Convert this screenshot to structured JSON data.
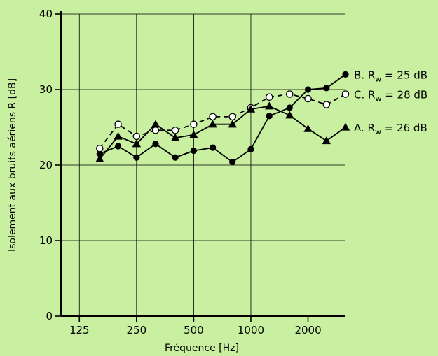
{
  "chart_data": {
    "type": "line",
    "title": "",
    "xlabel": "Fréquence [Hz]",
    "ylabel": "Isolement aux bruits aériens R [dB]",
    "x_scale": "log2",
    "x": [
      160,
      200,
      250,
      315,
      400,
      500,
      630,
      800,
      1000,
      1250,
      1600,
      2000,
      2500,
      3150
    ],
    "x_ticks": [
      125,
      250,
      500,
      1000,
      2000
    ],
    "x_tick_labels": [
      "125",
      "250",
      "500",
      "1000",
      "2000"
    ],
    "xlim": [
      100,
      3150
    ],
    "ylim": [
      0,
      40
    ],
    "y_ticks": [
      0,
      10,
      20,
      30,
      40
    ],
    "y_tick_labels": [
      "0",
      "10",
      "20",
      "30",
      "40"
    ],
    "grid": true,
    "series": [
      {
        "label_prefix": "B.",
        "label_sub": "w",
        "label_value": "= 25 dB",
        "marker": "filled-circle",
        "line": "solid",
        "values": [
          21.5,
          22.5,
          21.0,
          22.8,
          21.0,
          21.9,
          22.3,
          20.4,
          22.1,
          26.5,
          27.6,
          30.0,
          30.2,
          32.0
        ]
      },
      {
        "label_prefix": "C.",
        "label_sub": "w",
        "label_value": "= 28 dB",
        "marker": "open-circle",
        "line": "dashed",
        "values": [
          22.2,
          25.4,
          23.8,
          24.6,
          24.6,
          25.4,
          26.4,
          26.4,
          27.6,
          29.0,
          29.4,
          28.8,
          28.0,
          29.4
        ]
      },
      {
        "label_prefix": "A.",
        "label_sub": "w",
        "label_value": "= 26 dB",
        "marker": "filled-triangle",
        "line": "solid",
        "values": [
          20.8,
          23.8,
          22.8,
          25.4,
          23.6,
          24.0,
          25.4,
          25.4,
          27.4,
          27.8,
          26.6,
          24.8,
          23.2,
          25.0
        ]
      }
    ],
    "legend_placement": "right, inline at line ends",
    "colors": {
      "background": "#c8f0a0",
      "lines": "#000000",
      "open_marker_fill": "#ffffff"
    }
  }
}
